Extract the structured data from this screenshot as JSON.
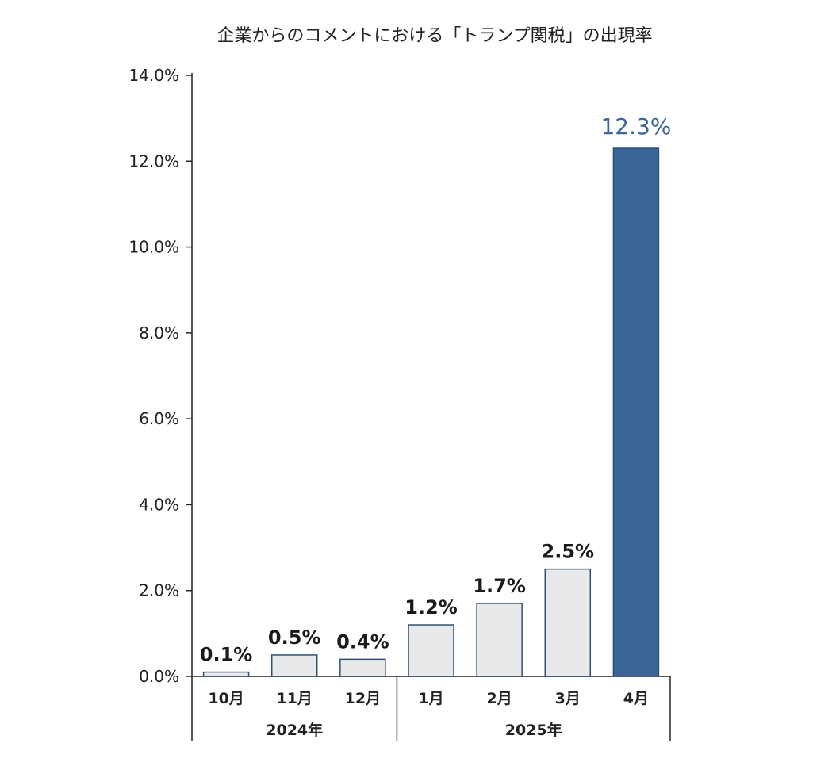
{
  "chart_data": {
    "type": "bar",
    "title": "企業からのコメントにおける「トランプ関税」の出現率",
    "categories": [
      "10月",
      "11月",
      "12月",
      "1月",
      "2月",
      "3月",
      "4月"
    ],
    "values": [
      0.1,
      0.5,
      0.4,
      1.2,
      1.7,
      2.5,
      12.3
    ],
    "value_labels": [
      "0.1%",
      "0.5%",
      "0.4%",
      "1.2%",
      "1.7%",
      "2.5%",
      "12.3%"
    ],
    "groups": [
      {
        "label": "2024年",
        "categories": [
          "10月",
          "11月",
          "12月"
        ]
      },
      {
        "label": "2025年",
        "categories": [
          "1月",
          "2月",
          "3月",
          "4月"
        ]
      }
    ],
    "ylim": [
      0,
      14
    ],
    "yticks": [
      0,
      2,
      4,
      6,
      8,
      10,
      12,
      14
    ],
    "ytick_labels": [
      "0.0%",
      "2.0%",
      "4.0%",
      "6.0%",
      "8.0%",
      "10.0%",
      "12.0%",
      "14.0%"
    ],
    "xlabel": "",
    "ylabel": "",
    "grid": false,
    "highlight_index": 6,
    "colors": {
      "bar_fill": "#e8e9eb",
      "bar_stroke": "#2f4e73",
      "highlight_fill": "#3c6597",
      "highlight_label": "#3c6597",
      "axis": "#222222"
    }
  }
}
